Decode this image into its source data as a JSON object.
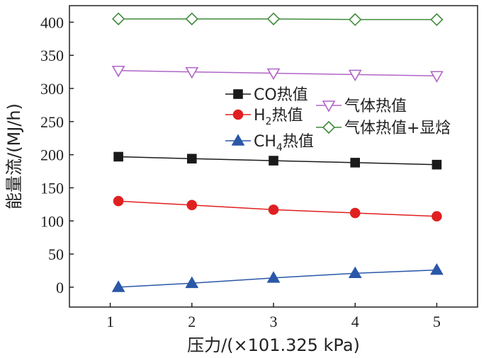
{
  "chart_data": {
    "type": "line",
    "xlabel": "压力/(×101.325 kPa)",
    "ylabel": "能量流/(MJ/h)",
    "xlim": [
      0.5,
      5.5
    ],
    "ylim": [
      -30,
      425
    ],
    "xticks": [
      1,
      2,
      3,
      4,
      5
    ],
    "yticks": [
      0,
      50,
      100,
      150,
      200,
      250,
      300,
      350,
      400
    ],
    "grid": false,
    "legend_position": "center",
    "series": [
      {
        "name": "CO热值",
        "label_main": "CO热值",
        "marker": "square",
        "color": "#1a1a1a",
        "fill": "#1a1a1a",
        "x": [
          1.1,
          2,
          3,
          4,
          5
        ],
        "values": [
          197,
          194,
          191,
          188,
          185
        ]
      },
      {
        "name": "H2热值",
        "label_main": "H",
        "label_sub": "2",
        "label_tail": "热值",
        "marker": "circle",
        "color": "#e02020",
        "fill": "#e02020",
        "x": [
          1.1,
          2,
          3,
          4,
          5
        ],
        "values": [
          130,
          124,
          117,
          112,
          107
        ]
      },
      {
        "name": "CH4热值",
        "label_main": "CH",
        "label_sub": "4",
        "label_tail": "热值",
        "marker": "triangle",
        "color": "#2a57a8",
        "fill": "#2a57a8",
        "x": [
          1.1,
          2,
          3,
          4,
          5
        ],
        "values": [
          0,
          6,
          14,
          21,
          26
        ]
      },
      {
        "name": "气体热值",
        "label_main": "气体热值",
        "marker": "triangle-down",
        "color": "#b065c6",
        "fill": "none",
        "x": [
          1.1,
          2,
          3,
          4,
          5
        ],
        "values": [
          327,
          325,
          323,
          321,
          319
        ]
      },
      {
        "name": "气体热值+显焓",
        "label_main": "气体热值+显焓",
        "marker": "diamond",
        "color": "#3f8a3a",
        "fill": "none",
        "x": [
          1.1,
          2,
          3,
          4,
          5
        ],
        "values": [
          405,
          405,
          405,
          404,
          404
        ]
      }
    ]
  }
}
